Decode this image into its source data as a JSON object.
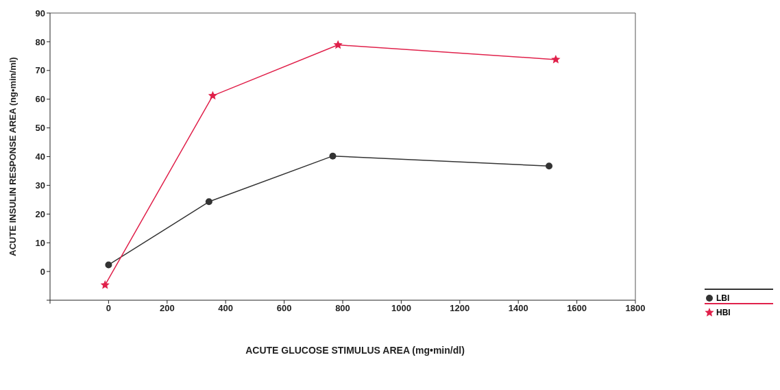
{
  "chart_data": {
    "type": "line",
    "xlabel": "ACUTE GLUCOSE STIMULUS AREA (mg•min/dl)",
    "ylabel": "ACUTE INSULIN RESPONSE AREA (ng•min/ml)",
    "series": [
      {
        "name": "LBI",
        "color": "#333333",
        "marker": "circle",
        "x": [
          0,
          343,
          766,
          1505
        ],
        "values": [
          2.3,
          24.3,
          40.2,
          36.7
        ]
      },
      {
        "name": "HBI",
        "color": "#e0204a",
        "marker": "star",
        "x": [
          -12,
          356,
          784,
          1528
        ],
        "values": [
          -4.7,
          61.2,
          78.9,
          73.8
        ]
      }
    ],
    "xlim": [
      -200,
      1800
    ],
    "xticks": [
      {
        "value": -200,
        "label": null
      },
      0,
      200,
      400,
      600,
      800,
      1000,
      1200,
      1400,
      1600,
      1800
    ],
    "ylim": [
      -10,
      90
    ],
    "yticks": [
      {
        "value": -10,
        "label": null
      },
      0,
      10,
      20,
      30,
      40,
      50,
      60,
      70,
      80,
      90
    ],
    "grid": false,
    "legend": "bottom right"
  }
}
